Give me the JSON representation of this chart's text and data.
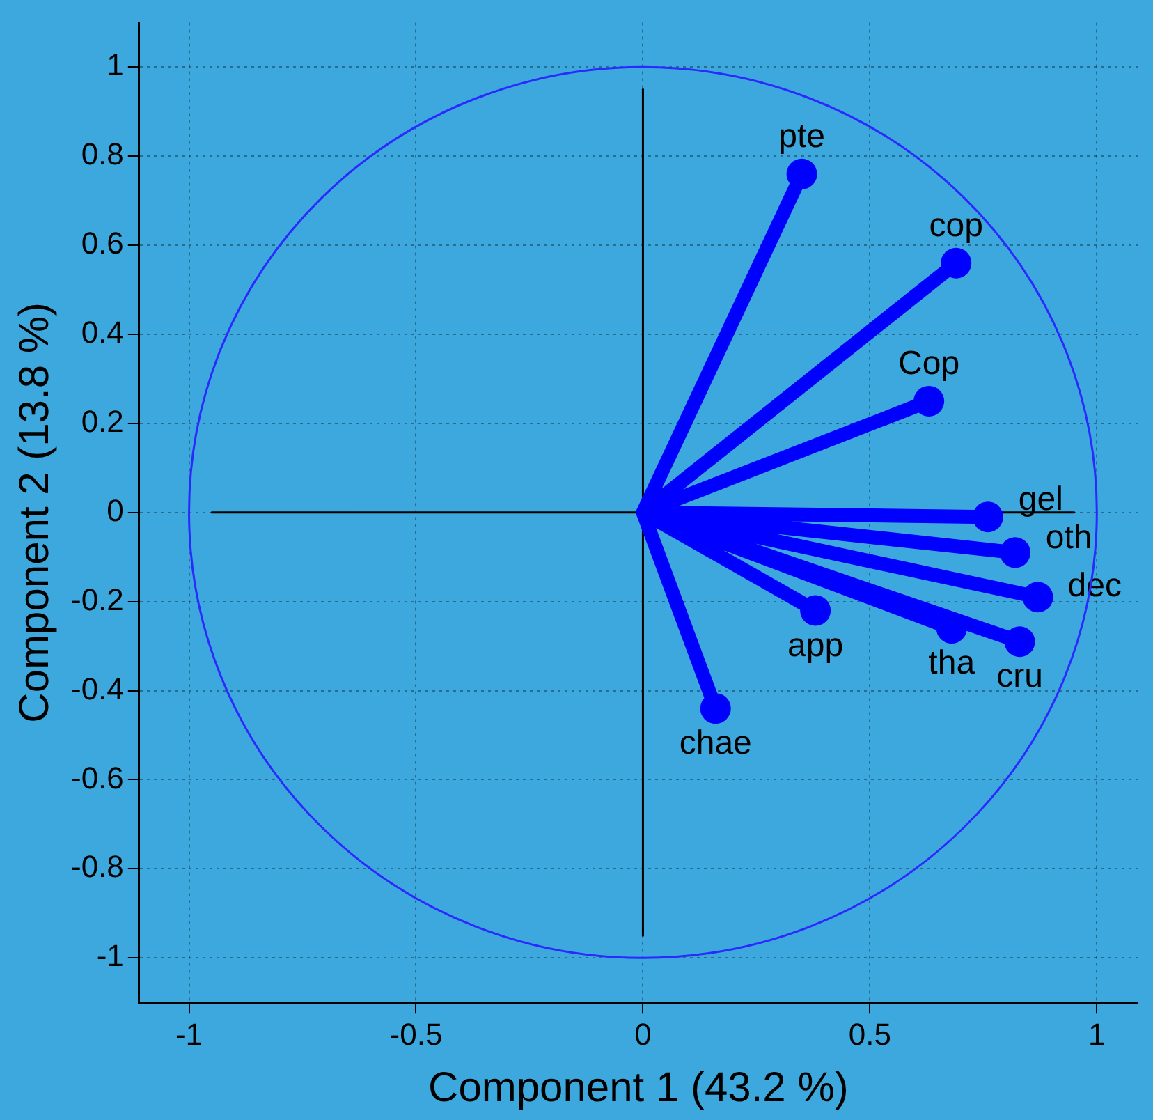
{
  "chart_data": {
    "type": "line",
    "xlabel": "Component 1 (43.2 %)",
    "ylabel": "Component 2 (13.8 %)",
    "xlim": [
      -1.11,
      1.09
    ],
    "ylim": [
      -1.1,
      1.1
    ],
    "xticks": [
      -1,
      -0.5,
      0,
      0.5,
      1
    ],
    "yticks": [
      -1,
      -0.8,
      -0.6,
      -0.4,
      -0.2,
      0,
      0.2,
      0.4,
      0.6,
      0.8,
      1
    ],
    "grid": true,
    "series": [
      {
        "color": "#000000",
        "marker": "none",
        "x": [
          -0.95,
          0.95
        ],
        "values": [
          0,
          0
        ]
      },
      {
        "color": "#000000",
        "marker": "none",
        "x": [
          0,
          0
        ],
        "values": [
          -0.95,
          0.95
        ]
      },
      {
        "color": "#0000ff",
        "marker": "none",
        "x": [
          0,
          0.35,
          0,
          0.69,
          0,
          0.63,
          0,
          0.76,
          0,
          0.82,
          0,
          0.87,
          0,
          0.83,
          0,
          0.68,
          0,
          0.38,
          0,
          0.16
        ],
        "values": [
          0,
          0.76,
          0,
          0.56,
          0,
          0.25,
          0,
          -0.01,
          0,
          -0.09,
          0,
          -0.19,
          0,
          -0.29,
          0,
          -0.26,
          0,
          -0.22,
          0,
          -0.44
        ]
      },
      {
        "type": "scatter",
        "color": "#0000ff",
        "marker": "circle",
        "x": [
          0.35,
          0.69,
          0.63,
          0.76,
          0.82,
          0.87,
          0.83,
          0.68,
          0.38,
          0.16
        ],
        "values": [
          0.76,
          0.56,
          0.25,
          -0.01,
          -0.09,
          -0.19,
          -0.29,
          -0.26,
          -0.22,
          -0.44
        ]
      }
    ],
    "annotations": [
      {
        "text": "pte",
        "x": 0.35,
        "y": 0.76
      },
      {
        "text": "cop",
        "x": 0.69,
        "y": 0.56
      },
      {
        "text": "Cop",
        "x": 0.63,
        "y": 0.25
      },
      {
        "text": "gel",
        "x": 0.76,
        "y": -0.01
      },
      {
        "text": "oth",
        "x": 0.82,
        "y": -0.09
      },
      {
        "text": "dec",
        "x": 0.87,
        "y": -0.19
      },
      {
        "text": "cru",
        "x": 0.83,
        "y": -0.29
      },
      {
        "text": "tha",
        "x": 0.68,
        "y": -0.26
      },
      {
        "text": "app",
        "x": 0.38,
        "y": -0.22
      },
      {
        "text": "chae",
        "x": 0.16,
        "y": -0.44
      }
    ]
  }
}
